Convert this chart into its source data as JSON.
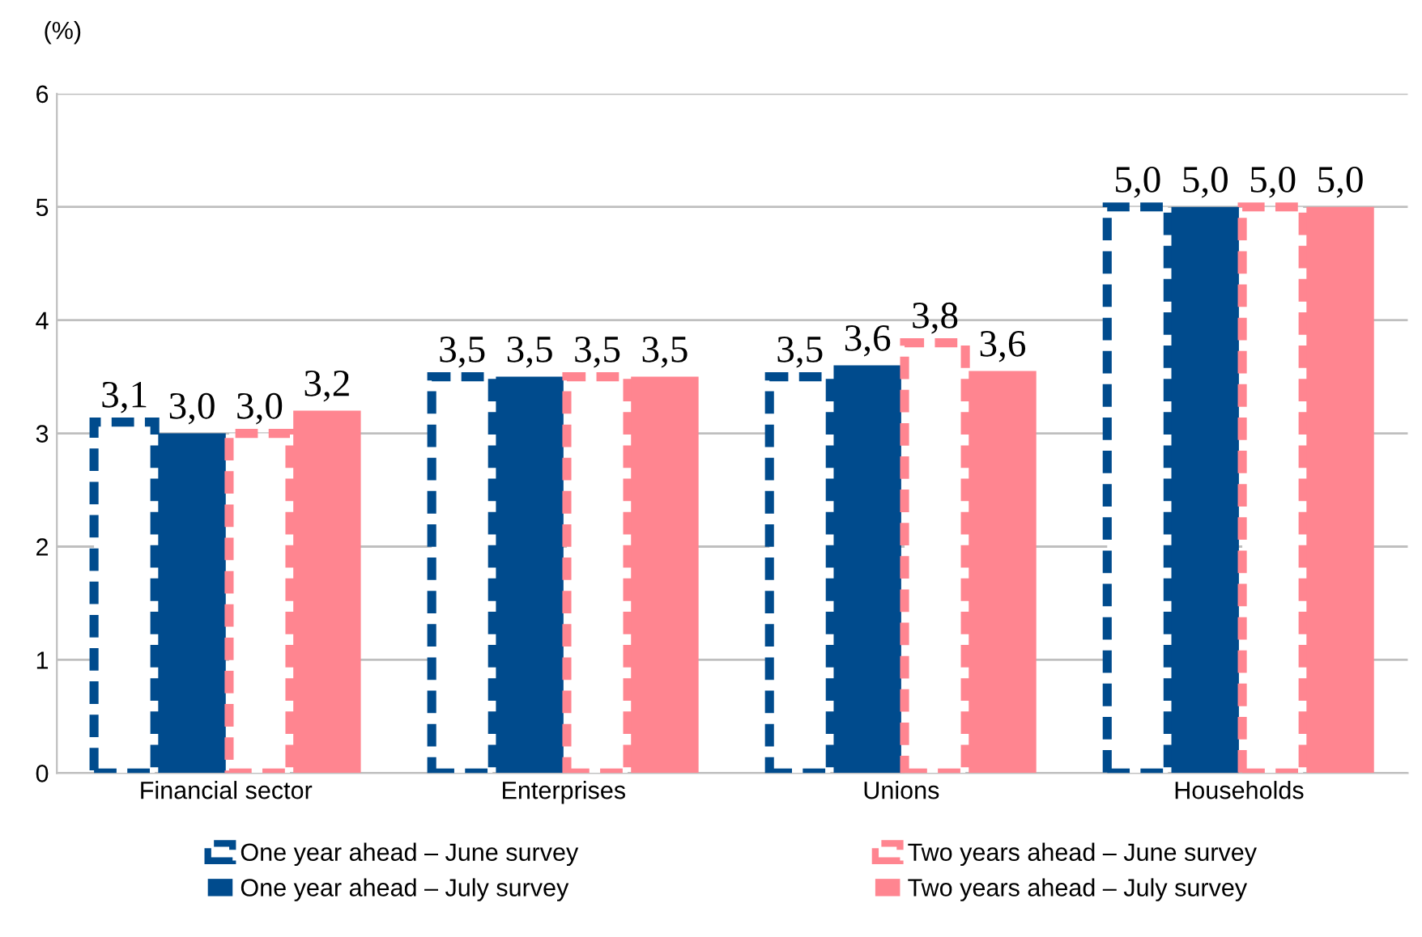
{
  "chart_data": {
    "type": "bar",
    "ylabel": "(%)",
    "categories": [
      "Financial sector",
      "Enterprises",
      "Unions",
      "Households"
    ],
    "series": [
      {
        "name": "One year ahead – June survey",
        "color": "#004b8d",
        "line_style": "dashed",
        "values": [
          3.1,
          3.5,
          3.5,
          5.0
        ],
        "value_labels": [
          "3,1",
          "3,5",
          "3,5",
          "5,0"
        ]
      },
      {
        "name": "One year ahead – July survey",
        "color": "#004b8d",
        "line_style": "solid",
        "values": [
          3.0,
          3.5,
          3.6,
          5.0
        ],
        "value_labels": [
          "3,0",
          "3,5",
          "3,6",
          "5,0"
        ]
      },
      {
        "name": "Two years ahead – June survey",
        "color": "#ff8590",
        "line_style": "dashed",
        "values": [
          3.0,
          3.5,
          3.8,
          5.0
        ],
        "value_labels": [
          "3,0",
          "3,5",
          "3,8",
          "5,0"
        ]
      },
      {
        "name": "Two years ahead – July survey",
        "color": "#ff8590",
        "line_style": "solid",
        "values": [
          3.2,
          3.5,
          3.55,
          5.0
        ],
        "value_labels": [
          "3,2",
          "3,5",
          "3,6",
          "5,0"
        ]
      }
    ],
    "ylim": [
      0,
      6
    ],
    "yticks": [
      0,
      1,
      2,
      3,
      4,
      5,
      6
    ],
    "grid": "y",
    "legend": "bottom"
  }
}
